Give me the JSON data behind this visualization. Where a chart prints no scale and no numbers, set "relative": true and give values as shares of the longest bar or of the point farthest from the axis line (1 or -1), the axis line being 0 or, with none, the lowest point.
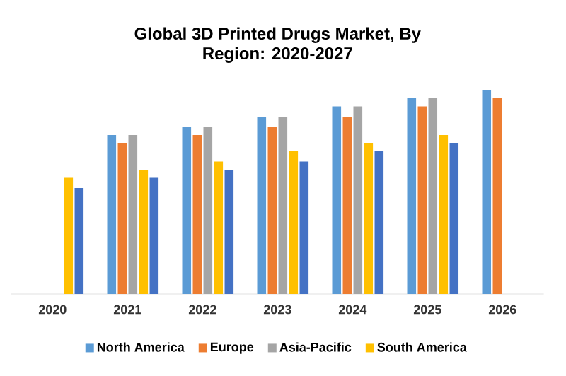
{
  "chart_data": {
    "type": "bar",
    "title": "Global 3D Printed Drugs Market, By Region: 2020-2027",
    "relative": true,
    "legend": "bottom",
    "categories": [
      "2020",
      "2021",
      "2022",
      "2023",
      "2024",
      "2025",
      "2026"
    ],
    "series": [
      {
        "name": "North America",
        "color": "#5b9bd5",
        "values": [
          null,
          0.78,
          0.82,
          0.87,
          0.92,
          0.96,
          1
        ]
      },
      {
        "name": "Europe",
        "color": "#ed7d31",
        "values": [
          null,
          0.74,
          0.78,
          0.82,
          0.87,
          0.92,
          0.96
        ]
      },
      {
        "name": "Asia-Pacific",
        "color": "#a5a5a5",
        "values": [
          null,
          0.78,
          0.82,
          0.87,
          0.92,
          0.96,
          null
        ]
      },
      {
        "name": "South America",
        "color": "#ffc000",
        "values": [
          0.57,
          0.61,
          0.65,
          0.7,
          0.74,
          0.78,
          null
        ]
      },
      {
        "color": "#4472c4",
        "values": [
          0.52,
          0.57,
          0.61,
          0.65,
          0.7,
          0.74,
          null
        ]
      }
    ]
  }
}
